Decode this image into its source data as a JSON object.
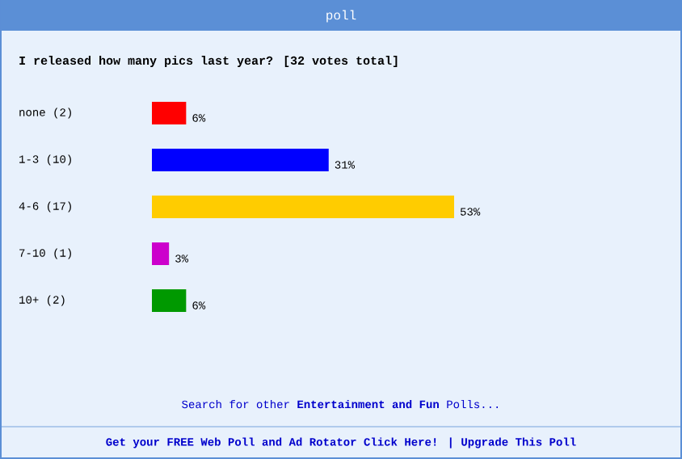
{
  "chart_data": {
    "type": "bar",
    "orientation": "horizontal",
    "title": "poll",
    "subtitle": "I released how many pics last year? [32 votes total]",
    "categories": [
      "none (2)",
      "1-3 (10)",
      "4-6 (17)",
      "7-10 (1)",
      "10+ (2)"
    ],
    "values": [
      6,
      31,
      53,
      3,
      6
    ],
    "value_labels": [
      "6%",
      "31%",
      "53%",
      "3%",
      "6%"
    ],
    "colors": [
      "#ff0000",
      "#0000ff",
      "#ffcc00",
      "#cc00cc",
      "#009900"
    ],
    "tick_labels": "y",
    "annotations": [
      "Search for other **Entertainment and Fun** Polls...",
      "Get your FREE Web Poll and Ad Rotator Click Here! | Upgrade This Poll"
    ]
  }
}
